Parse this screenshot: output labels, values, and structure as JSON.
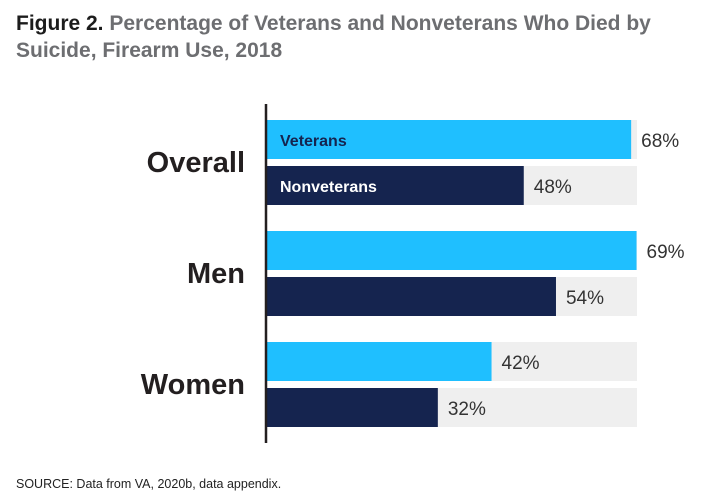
{
  "title": {
    "figure_label": "Figure 2.",
    "text": "Percentage of Veterans and Nonveterans Who Died by Suicide, Firearm Use, 2018"
  },
  "source": "SOURCE: Data from VA, 2020b, data appendix.",
  "colors": {
    "veterans": "#1fbfff",
    "nonveterans": "#15244f",
    "track": "#efefef",
    "axis": "#231f20"
  },
  "chart_data": {
    "type": "bar",
    "orientation": "horizontal",
    "categories": [
      "Overall",
      "Men",
      "Women"
    ],
    "series": [
      {
        "name": "Veterans",
        "values": [
          68,
          69,
          42
        ]
      },
      {
        "name": "Nonveterans",
        "values": [
          48,
          54,
          32
        ]
      }
    ],
    "series_labels_shown_on": "Overall",
    "value_format": "{v}%",
    "xlim": [
      0,
      100
    ],
    "xlabel": "",
    "ylabel": "",
    "grid": false,
    "legend": "inline labels inside first group bars"
  }
}
